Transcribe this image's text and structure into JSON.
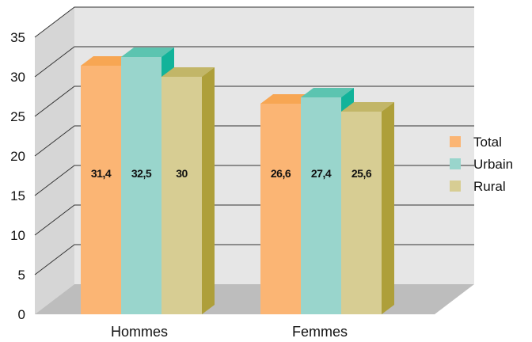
{
  "chart_data": {
    "type": "bar",
    "categories": [
      "Hommes",
      "Femmes"
    ],
    "series": [
      {
        "name": "Total",
        "values": [
          31.4,
          26.6
        ],
        "labels": [
          "31,4",
          "26,6"
        ],
        "color": "#FBB574",
        "top": "#F7A653",
        "side": "#E6914A"
      },
      {
        "name": "Urbain",
        "values": [
          32.5,
          27.4
        ],
        "labels": [
          "32,5",
          "27,4"
        ],
        "color": "#99D5CC",
        "top": "#5CC4B0",
        "side": "#12B39A"
      },
      {
        "name": "Rural",
        "values": [
          30,
          25.6
        ],
        "labels": [
          "30",
          "25,6"
        ],
        "color": "#D7CD93",
        "top": "#C2B668",
        "side": "#AE9F3A"
      }
    ],
    "ylim": [
      0,
      35
    ],
    "yticks": [
      "0",
      "5",
      "10",
      "15",
      "20",
      "25",
      "30",
      "35"
    ],
    "grid": true,
    "legend": "right",
    "wall_color": "#E6E6E6",
    "floor_color": "#BDBDBD"
  }
}
